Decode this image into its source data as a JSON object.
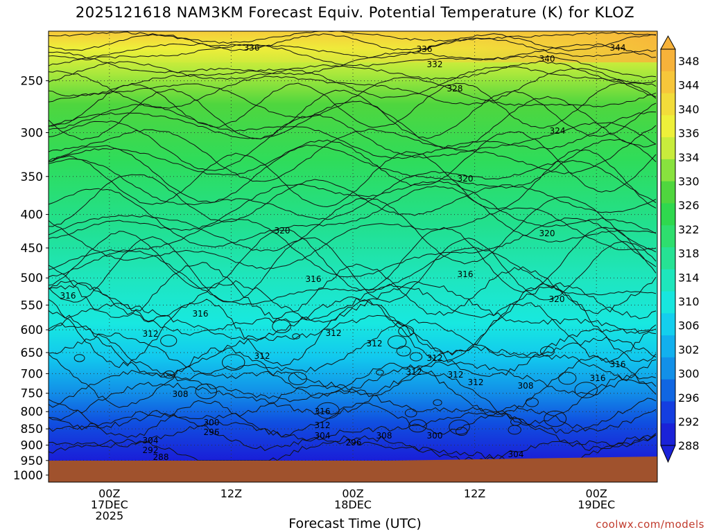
{
  "chart_data": {
    "type": "contour",
    "title": "2025121618 NAM3KM Forecast Equiv. Potential Temperature (K) for KLOZ",
    "xlabel": "Forecast Time (UTC)",
    "credit": "coolwx.com/models",
    "y_pressure_ticks": [
      250,
      300,
      350,
      400,
      450,
      500,
      550,
      600,
      650,
      700,
      750,
      800,
      850,
      900,
      950,
      1000
    ],
    "x_ticks": [
      {
        "hour": 6,
        "line1": "00Z",
        "line2": "17DEC",
        "line3": "2025"
      },
      {
        "hour": 18,
        "line1": "12Z",
        "line2": "",
        "line3": ""
      },
      {
        "hour": 30,
        "line1": "00Z",
        "line2": "18DEC",
        "line3": ""
      },
      {
        "hour": 42,
        "line1": "12Z",
        "line2": "",
        "line3": ""
      },
      {
        "hour": 54,
        "line1": "00Z",
        "line2": "19DEC",
        "line3": ""
      }
    ],
    "x_range_hours": [
      0,
      60
    ],
    "colorbar_labels": [
      "348",
      "344",
      "340",
      "336",
      "334",
      "330",
      "326",
      "322",
      "318",
      "314",
      "310",
      "306",
      "302",
      "300",
      "296",
      "292",
      "288"
    ],
    "contour_labels": [
      "336",
      "336",
      "344",
      "340",
      "332",
      "328",
      "324",
      "320",
      "320",
      "320",
      "316",
      "316",
      "316",
      "316",
      "320",
      "316",
      "312",
      "312",
      "312",
      "312",
      "312",
      "312",
      "312",
      "308",
      "312",
      "316",
      "308",
      "300",
      "296",
      "304",
      "292",
      "288",
      "304",
      "296",
      "308",
      "300",
      "304",
      "312",
      "316"
    ],
    "colors": {
      "ground": "#a0522d",
      "label": "#000000",
      "credit": "#c0392b"
    }
  }
}
